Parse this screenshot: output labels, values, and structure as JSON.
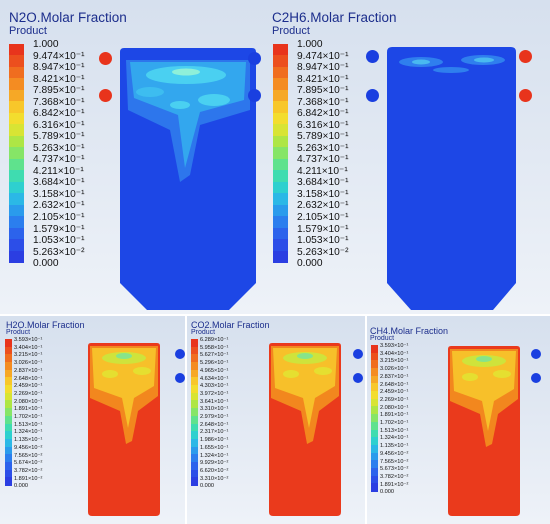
{
  "panels": {
    "n2o": {
      "title": "N2O.Molar Fraction",
      "subtitle": "Product"
    },
    "c2h6": {
      "title": "C2H6.Molar Fraction",
      "subtitle": "Product"
    },
    "h2o": {
      "title": "H2O.Molar Fraction",
      "subtitle": "Product"
    },
    "co2": {
      "title": "CO2.Molar Fraction",
      "subtitle": "Product"
    },
    "ch4": {
      "title": "CH4.Molar Fraction",
      "subtitle": "Product"
    }
  },
  "scale_large": [
    "1.000",
    "9.474×10⁻¹",
    "8.947×10⁻¹",
    "8.421×10⁻¹",
    "7.895×10⁻¹",
    "7.368×10⁻¹",
    "6.842×10⁻¹",
    "6.316×10⁻¹",
    "5.789×10⁻¹",
    "5.263×10⁻¹",
    "4.737×10⁻¹",
    "4.211×10⁻¹",
    "3.684×10⁻¹",
    "3.158×10⁻¹",
    "2.632×10⁻¹",
    "2.105×10⁻¹",
    "1.579×10⁻¹",
    "1.053×10⁻¹",
    "5.263×10⁻²",
    "0.000"
  ],
  "scale_h2o": [
    "3.593×10⁻¹",
    "3.404×10⁻¹",
    "3.215×10⁻¹",
    "3.026×10⁻¹",
    "2.837×10⁻¹",
    "2.648×10⁻¹",
    "2.459×10⁻¹",
    "2.269×10⁻¹",
    "2.080×10⁻¹",
    "1.891×10⁻¹",
    "1.702×10⁻¹",
    "1.513×10⁻¹",
    "1.324×10⁻¹",
    "1.135×10⁻¹",
    "9.456×10⁻²",
    "7.565×10⁻²",
    "5.674×10⁻²",
    "3.782×10⁻²",
    "1.891×10⁻²",
    "0.000"
  ],
  "scale_co2": [
    "6.289×10⁻¹",
    "5.958×10⁻¹",
    "5.627×10⁻¹",
    "5.296×10⁻¹",
    "4.965×10⁻¹",
    "4.634×10⁻¹",
    "4.303×10⁻¹",
    "3.972×10⁻¹",
    "3.641×10⁻¹",
    "3.310×10⁻¹",
    "2.979×10⁻¹",
    "2.648×10⁻¹",
    "2.317×10⁻¹",
    "1.986×10⁻¹",
    "1.655×10⁻¹",
    "1.324×10⁻¹",
    "9.929×10⁻²",
    "6.620×10⁻²",
    "3.310×10⁻²",
    "0.000"
  ],
  "scale_ch4": [
    "3.593×10⁻¹",
    "3.404×10⁻¹",
    "3.215×10⁻¹",
    "3.026×10⁻¹",
    "2.837×10⁻¹",
    "2.648×10⁻¹",
    "2.459×10⁻¹",
    "2.269×10⁻¹",
    "2.080×10⁻¹",
    "1.891×10⁻¹",
    "1.702×10⁻¹",
    "1.513×10⁻¹",
    "1.324×10⁻¹",
    "1.135×10⁻¹",
    "9.456×10⁻²",
    "7.565×10⁻²",
    "5.673×10⁻²",
    "3.782×10⁻²",
    "1.891×10⁻²",
    "0.000"
  ],
  "colors": {
    "inlet_red": "#e8341c",
    "inlet_blue": "#1a3fe0",
    "vessel_blue": "#1d47e6",
    "vessel_red": "#ea3a1c",
    "title_blue": "#1c2e8c"
  }
}
